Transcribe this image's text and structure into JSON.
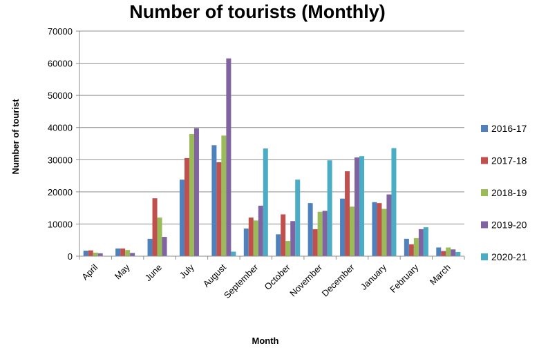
{
  "chart_data": {
    "type": "bar",
    "title": "Number of tourists (Monthly)",
    "xlabel": "Month",
    "ylabel": "Number of tourist",
    "ylim": [
      0,
      70000
    ],
    "yticks": [
      0,
      10000,
      20000,
      30000,
      40000,
      50000,
      60000,
      70000
    ],
    "grid": true,
    "legend_position": "right",
    "categories": [
      "April",
      "May",
      "June",
      "July",
      "August",
      "September",
      "October",
      "November",
      "December",
      "January",
      "February",
      "March"
    ],
    "series": [
      {
        "name": "2016-17",
        "color": "#4F81BD",
        "values": [
          1700,
          2400,
          5400,
          23800,
          34500,
          8600,
          6800,
          16500,
          17900,
          16800,
          5400,
          2700
        ]
      },
      {
        "name": "2017-18",
        "color": "#C0504D",
        "values": [
          1800,
          2400,
          18000,
          30500,
          29200,
          12000,
          13000,
          8400,
          26400,
          16500,
          3700,
          1600
        ]
      },
      {
        "name": "2018-19",
        "color": "#9BBB59",
        "values": [
          1100,
          1900,
          12000,
          38000,
          37500,
          11100,
          4700,
          13800,
          15400,
          14700,
          5600,
          2700
        ]
      },
      {
        "name": "2019-20",
        "color": "#8064A2",
        "values": [
          900,
          1000,
          6000,
          39800,
          61500,
          15700,
          10900,
          14100,
          30700,
          19200,
          8400,
          2100
        ]
      },
      {
        "name": "2020-21",
        "color": "#4BACC6",
        "values": [
          0,
          0,
          0,
          0,
          1400,
          33500,
          23800,
          29800,
          31100,
          33600,
          9000,
          1300
        ]
      }
    ]
  }
}
